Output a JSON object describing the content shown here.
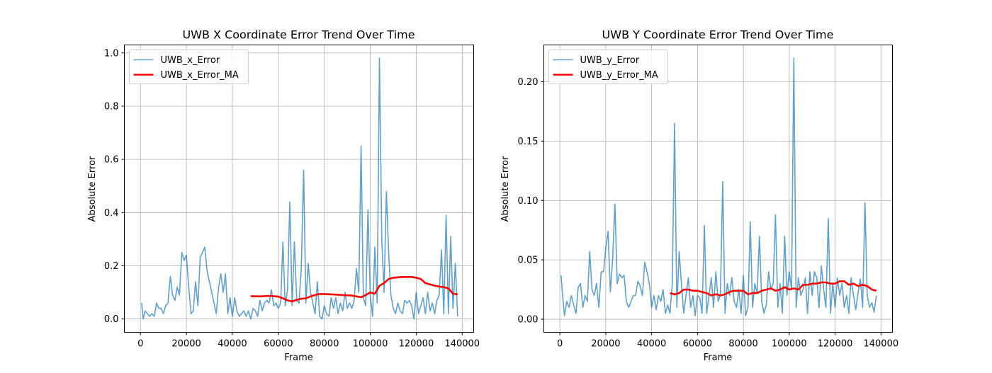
{
  "chart_data": [
    {
      "type": "line",
      "title": "UWB X Coordinate Error Trend Over Time",
      "xlabel": "Frame",
      "ylabel": "Absolute Error",
      "xlim": [
        -7000,
        145000
      ],
      "ylim": [
        -0.05,
        1.03
      ],
      "xticks": [
        0,
        20000,
        40000,
        60000,
        80000,
        100000,
        120000,
        140000
      ],
      "xtick_labels": [
        "0",
        "20000",
        "40000",
        "60000",
        "80000",
        "100000",
        "120000",
        "140000"
      ],
      "yticks": [
        0.0,
        0.2,
        0.4,
        0.6,
        0.8,
        1.0
      ],
      "ytick_labels": [
        "0.0",
        "0.2",
        "0.4",
        "0.6",
        "0.8",
        "1.0"
      ],
      "grid": true,
      "legend_position": "top-left",
      "series": [
        {
          "name": "UWB_x_Error",
          "color": "#1f77b4",
          "x": [
            500,
            1200,
            2000,
            3000,
            4000,
            5000,
            6000,
            7000,
            8000,
            9000,
            10000,
            11000,
            12000,
            13000,
            14000,
            15000,
            16000,
            17000,
            18000,
            19000,
            20000,
            21000,
            22000,
            23000,
            24000,
            25000,
            26000,
            27000,
            28000,
            29000,
            30000,
            31000,
            32000,
            33000,
            34000,
            35000,
            36000,
            37000,
            38000,
            39000,
            40000,
            41000,
            42000,
            43000,
            44000,
            45000,
            46000,
            47000,
            48000,
            49000,
            50000,
            51000,
            52000,
            53000,
            54000,
            55000,
            56000,
            57000,
            58000,
            59000,
            60000,
            61000,
            62000,
            63000,
            64000,
            65000,
            66000,
            67000,
            68000,
            69000,
            70000,
            71000,
            72000,
            73000,
            74000,
            75000,
            76000,
            77000,
            78000,
            79000,
            80000,
            81000,
            82000,
            83000,
            84000,
            85000,
            86000,
            87000,
            88000,
            89000,
            90000,
            91000,
            92000,
            93000,
            94000,
            95000,
            96000,
            97000,
            98000,
            99000,
            100000,
            101000,
            102000,
            103000,
            104000,
            105000,
            106000,
            107000,
            108000,
            109000,
            110000,
            111000,
            112000,
            113000,
            114000,
            115000,
            116000,
            117000,
            118000,
            119000,
            120000,
            121000,
            122000,
            123000,
            124000,
            125000,
            126000,
            127000,
            128000,
            129000,
            130000,
            131000,
            132000,
            133000,
            134000,
            135000,
            136000,
            137000,
            138000
          ],
          "y": [
            0.06,
            0.0,
            0.03,
            0.02,
            0.01,
            0.02,
            0.01,
            0.06,
            0.04,
            0.04,
            0.02,
            0.05,
            0.06,
            0.16,
            0.09,
            0.07,
            0.12,
            0.09,
            0.25,
            0.22,
            0.24,
            0.12,
            0.02,
            0.03,
            0.14,
            0.05,
            0.23,
            0.25,
            0.27,
            0.18,
            0.14,
            0.1,
            0.06,
            0.02,
            0.12,
            0.17,
            0.1,
            0.17,
            0.02,
            0.08,
            0.01,
            0.08,
            0.03,
            0.01,
            0.02,
            0.03,
            0.01,
            0.03,
            0.0,
            0.04,
            0.03,
            0.01,
            0.07,
            0.03,
            0.06,
            0.07,
            0.06,
            0.11,
            0.05,
            0.06,
            0.04,
            0.06,
            0.29,
            0.05,
            0.11,
            0.44,
            0.05,
            0.29,
            0.07,
            0.06,
            0.19,
            0.56,
            0.06,
            0.21,
            0.1,
            0.06,
            0.02,
            0.14,
            0.01,
            0.0,
            0.05,
            0.02,
            0.01,
            0.08,
            0.04,
            0.08,
            0.02,
            0.06,
            0.03,
            0.1,
            0.04,
            0.06,
            0.04,
            0.07,
            0.19,
            0.1,
            0.65,
            0.08,
            0.05,
            0.41,
            0.09,
            0.01,
            0.27,
            0.06,
            0.98,
            0.3,
            0.1,
            0.48,
            0.25,
            0.09,
            0.04,
            0.02,
            0.06,
            0.03,
            0.02,
            0.07,
            0.06,
            0.07,
            0.05,
            0.0,
            0.1,
            0.02,
            0.05,
            0.08,
            0.02,
            0.1,
            0.03,
            0.06,
            0.02,
            0.07,
            0.09,
            0.26,
            0.02,
            0.39,
            0.02,
            0.31,
            0.04,
            0.21,
            0.01
          ]
        },
        {
          "name": "UWB_x_Error_MA",
          "color": "#ff0000",
          "x": [
            48000,
            52000,
            56000,
            60000,
            62000,
            64000,
            66000,
            68000,
            70000,
            72000,
            74000,
            76000,
            78000,
            80000,
            84000,
            88000,
            92000,
            96000,
            98000,
            100000,
            102000,
            104000,
            106000,
            108000,
            110000,
            114000,
            118000,
            120000,
            122000,
            124000,
            126000,
            128000,
            130000,
            132000,
            134000,
            136000,
            138000
          ],
          "y": [
            0.086,
            0.085,
            0.087,
            0.084,
            0.078,
            0.07,
            0.066,
            0.072,
            0.076,
            0.078,
            0.085,
            0.09,
            0.094,
            0.094,
            0.092,
            0.09,
            0.088,
            0.082,
            0.09,
            0.1,
            0.095,
            0.125,
            0.135,
            0.15,
            0.155,
            0.158,
            0.158,
            0.155,
            0.15,
            0.135,
            0.13,
            0.125,
            0.122,
            0.12,
            0.115,
            0.095,
            0.093
          ]
        }
      ]
    },
    {
      "type": "line",
      "title": "UWB Y Coordinate Error Trend Over Time",
      "xlabel": "Frame",
      "ylabel": "Absolute Error",
      "xlim": [
        -7000,
        145000
      ],
      "ylim": [
        -0.011,
        0.231
      ],
      "xticks": [
        0,
        20000,
        40000,
        60000,
        80000,
        100000,
        120000,
        140000
      ],
      "xtick_labels": [
        "0",
        "20000",
        "40000",
        "60000",
        "80000",
        "100000",
        "120000",
        "140000"
      ],
      "yticks": [
        0.0,
        0.05,
        0.1,
        0.15,
        0.2
      ],
      "ytick_labels": [
        "0.00",
        "0.05",
        "0.10",
        "0.15",
        "0.20"
      ],
      "grid": true,
      "legend_position": "top-left",
      "series": [
        {
          "name": "UWB_y_Error",
          "color": "#1f77b4",
          "x": [
            500,
            1200,
            2000,
            3000,
            4000,
            5000,
            6000,
            7000,
            8000,
            9000,
            10000,
            11000,
            12000,
            13000,
            14000,
            15000,
            16000,
            17000,
            18000,
            19000,
            20000,
            21000,
            22000,
            23000,
            24000,
            25000,
            26000,
            27000,
            28000,
            29000,
            30000,
            31000,
            32000,
            33000,
            34000,
            35000,
            36000,
            37000,
            38000,
            39000,
            40000,
            41000,
            42000,
            43000,
            44000,
            45000,
            46000,
            47000,
            48000,
            49000,
            50000,
            51000,
            52000,
            53000,
            54000,
            55000,
            56000,
            57000,
            58000,
            59000,
            60000,
            61000,
            62000,
            63000,
            64000,
            65000,
            66000,
            67000,
            68000,
            69000,
            70000,
            71000,
            72000,
            73000,
            74000,
            75000,
            76000,
            77000,
            78000,
            79000,
            80000,
            81000,
            82000,
            83000,
            84000,
            85000,
            86000,
            87000,
            88000,
            89000,
            90000,
            91000,
            92000,
            93000,
            94000,
            95000,
            96000,
            97000,
            98000,
            99000,
            100000,
            101000,
            102000,
            103000,
            104000,
            105000,
            106000,
            107000,
            108000,
            109000,
            110000,
            111000,
            112000,
            113000,
            114000,
            115000,
            116000,
            117000,
            118000,
            119000,
            120000,
            121000,
            122000,
            123000,
            124000,
            125000,
            126000,
            127000,
            128000,
            129000,
            130000,
            131000,
            132000,
            133000,
            134000,
            135000,
            136000,
            137000,
            138000
          ],
          "y": [
            0.037,
            0.02,
            0.003,
            0.015,
            0.01,
            0.02,
            0.012,
            0.005,
            0.027,
            0.03,
            0.01,
            0.02,
            0.015,
            0.057,
            0.025,
            0.02,
            0.03,
            0.01,
            0.04,
            0.04,
            0.06,
            0.074,
            0.023,
            0.05,
            0.097,
            0.03,
            0.038,
            0.035,
            0.037,
            0.015,
            0.01,
            0.015,
            0.02,
            0.02,
            0.032,
            0.028,
            0.02,
            0.048,
            0.04,
            0.03,
            0.01,
            0.02,
            0.008,
            0.02,
            0.015,
            0.025,
            0.005,
            0.012,
            0.005,
            0.03,
            0.165,
            0.01,
            0.057,
            0.03,
            0.005,
            0.02,
            0.035,
            0.01,
            0.02,
            0.003,
            0.02,
            0.018,
            0.005,
            0.079,
            0.005,
            0.02,
            0.035,
            0.01,
            0.04,
            0.015,
            0.021,
            0.116,
            0.005,
            0.03,
            0.02,
            0.035,
            0.015,
            0.01,
            0.025,
            0.005,
            0.037,
            0.003,
            0.01,
            0.082,
            0.01,
            0.03,
            0.022,
            0.07,
            0.015,
            0.005,
            0.012,
            0.04,
            0.025,
            0.03,
            0.088,
            0.01,
            0.03,
            0.005,
            0.07,
            0.02,
            0.04,
            0.025,
            0.22,
            0.01,
            0.035,
            0.02,
            0.025,
            0.035,
            0.005,
            0.04,
            0.02,
            0.04,
            0.035,
            0.01,
            0.045,
            0.025,
            0.01,
            0.085,
            0.005,
            0.03,
            0.01,
            0.035,
            0.02,
            0.03,
            0.01,
            0.02,
            0.005,
            0.035,
            0.02,
            0.008,
            0.022,
            0.034,
            0.01,
            0.098,
            0.02,
            0.01,
            0.014,
            0.006,
            0.02
          ],
          "y_trimmed_note": ""
        },
        {
          "name": "UWB_y_Error_MA",
          "color": "#ff0000",
          "x": [
            48000,
            50000,
            52000,
            54000,
            56000,
            58000,
            60000,
            62000,
            64000,
            66000,
            68000,
            70000,
            72000,
            74000,
            76000,
            78000,
            80000,
            82000,
            84000,
            86000,
            88000,
            90000,
            92000,
            94000,
            96000,
            98000,
            100000,
            102000,
            104000,
            106000,
            108000,
            110000,
            112000,
            114000,
            116000,
            118000,
            120000,
            122000,
            124000,
            126000,
            128000,
            130000,
            132000,
            134000,
            136000,
            138000
          ],
          "y": [
            0.022,
            0.021,
            0.022,
            0.025,
            0.025,
            0.024,
            0.024,
            0.023,
            0.022,
            0.02,
            0.021,
            0.02,
            0.021,
            0.023,
            0.024,
            0.024,
            0.024,
            0.021,
            0.022,
            0.022,
            0.024,
            0.025,
            0.026,
            0.024,
            0.025,
            0.027,
            0.025,
            0.026,
            0.025,
            0.029,
            0.029,
            0.03,
            0.03,
            0.031,
            0.031,
            0.03,
            0.03,
            0.032,
            0.032,
            0.029,
            0.03,
            0.028,
            0.029,
            0.028,
            0.025,
            0.024
          ]
        }
      ]
    }
  ]
}
